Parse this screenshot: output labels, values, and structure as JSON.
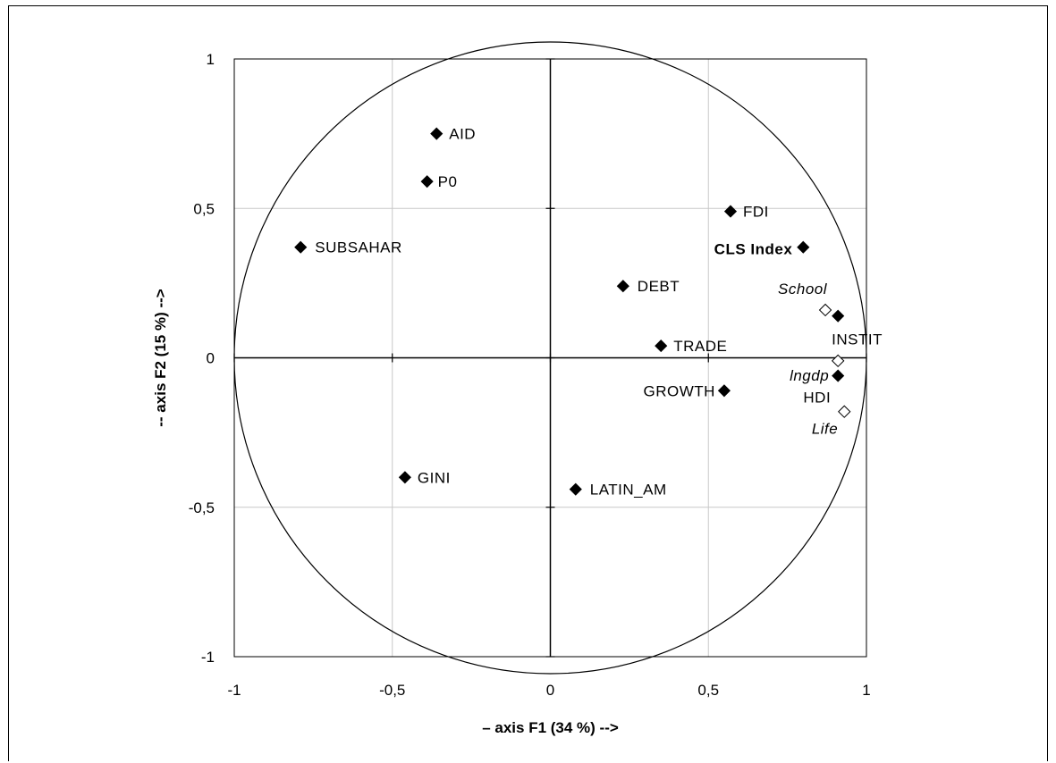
{
  "chart_data": {
    "type": "scatter",
    "xlabel": "– axis F1 (34 %) -->",
    "ylabel": "-- axis F2 (15 %) -->",
    "xlim": [
      -1,
      1
    ],
    "ylim": [
      -1,
      1
    ],
    "xticks": [
      "-1",
      "-0,5",
      "0",
      "0,5",
      "1"
    ],
    "yticks": [
      "1",
      "0,5",
      "0",
      "-0,5",
      "-1"
    ],
    "grid": true,
    "unit_circle": true,
    "series": [
      {
        "marker": "filled-diamond",
        "points": [
          {
            "label": "AID",
            "x": -0.36,
            "y": 0.75
          },
          {
            "label": "P0",
            "x": -0.39,
            "y": 0.59
          },
          {
            "label": "SUBSAHAR",
            "x": -0.79,
            "y": 0.37
          },
          {
            "label": "FDI",
            "x": 0.57,
            "y": 0.49
          },
          {
            "label": "CLS Index",
            "x": 0.8,
            "y": 0.37
          },
          {
            "label": "DEBT",
            "x": 0.23,
            "y": 0.24
          },
          {
            "label": "INSTIT",
            "x": 0.91,
            "y": 0.14
          },
          {
            "label": "TRADE",
            "x": 0.35,
            "y": 0.04
          },
          {
            "label": "HDI",
            "x": 0.91,
            "y": -0.06
          },
          {
            "label": "GROWTH",
            "x": 0.55,
            "y": -0.11
          },
          {
            "label": "GINI",
            "x": -0.46,
            "y": -0.4
          },
          {
            "label": "LATIN_AM",
            "x": 0.08,
            "y": -0.44
          }
        ]
      },
      {
        "marker": "open-diamond",
        "points": [
          {
            "label": "School",
            "x": 0.87,
            "y": 0.16
          },
          {
            "label": "lngdp",
            "x": 0.91,
            "y": -0.01
          },
          {
            "label": "Life",
            "x": 0.93,
            "y": -0.18
          }
        ]
      }
    ]
  }
}
